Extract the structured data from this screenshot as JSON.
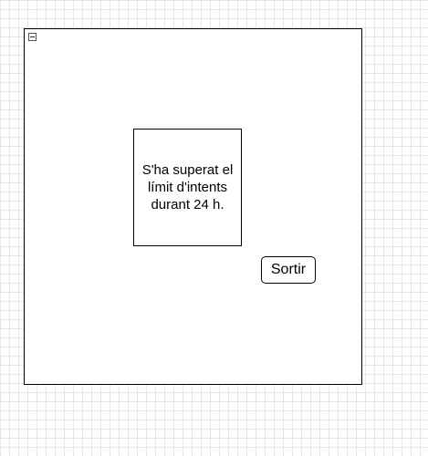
{
  "dialog": {
    "message": "S'ha superat el límit d'intents durant 24 h.",
    "exit_label": "Sortir"
  },
  "icons": {
    "collapse_toggle": "collapse-minus-icon"
  },
  "colors": {
    "grid": "#e6e6e6",
    "border": "#000000",
    "background": "#ffffff"
  }
}
